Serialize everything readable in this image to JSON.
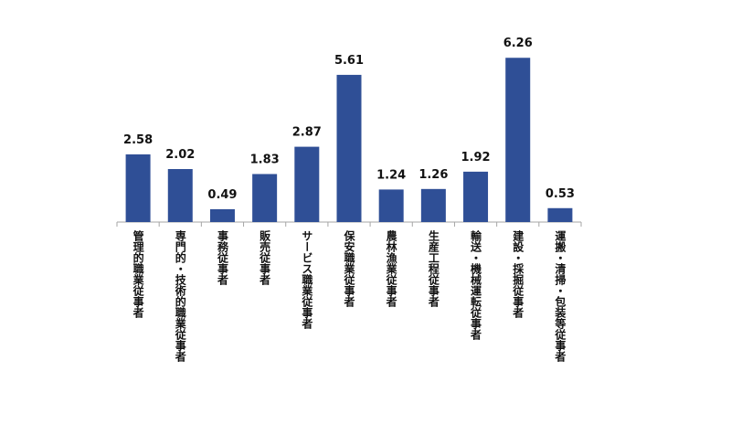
{
  "chart_data": {
    "type": "bar",
    "categories": [
      "管理的職業従事者",
      "専門的・技術的職業従事者",
      "事務従事者",
      "販売従事者",
      "サービス職業従事者",
      "保安職業従事者",
      "農林漁業従事者",
      "生産工程従事者",
      "輸送・機械運転従事者",
      "建設・採掘従事者",
      "運搬・清掃・包装等従事者"
    ],
    "values": [
      2.58,
      2.02,
      0.49,
      1.83,
      2.87,
      5.61,
      1.24,
      1.26,
      1.92,
      6.26,
      0.53
    ],
    "color": "#2f4f96",
    "ylim": [
      0,
      7
    ]
  }
}
